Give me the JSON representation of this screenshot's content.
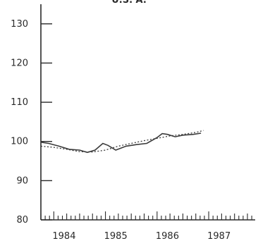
{
  "chart_data": {
    "type": "line",
    "title": "",
    "title_fragment": "U.S. A.",
    "xlabel": "",
    "ylabel": "",
    "x_tick_labels": [
      "1984",
      "1985",
      "1986",
      "1987"
    ],
    "y_ticks": [
      80,
      90,
      100,
      110,
      120,
      130
    ],
    "ylim": [
      80,
      135
    ],
    "xlim": [
      1983.75,
      1987.9
    ],
    "grid": false,
    "series": [
      {
        "style": "solid",
        "points": [
          {
            "x": 1983.75,
            "y": 99.8
          },
          {
            "x": 1983.9,
            "y": 99.5
          },
          {
            "x": 1984.1,
            "y": 98.8
          },
          {
            "x": 1984.3,
            "y": 98.0
          },
          {
            "x": 1984.5,
            "y": 97.8
          },
          {
            "x": 1984.65,
            "y": 97.2
          },
          {
            "x": 1984.8,
            "y": 97.8
          },
          {
            "x": 1984.95,
            "y": 99.5
          },
          {
            "x": 1985.05,
            "y": 99.0
          },
          {
            "x": 1985.2,
            "y": 97.8
          },
          {
            "x": 1985.4,
            "y": 98.8
          },
          {
            "x": 1985.6,
            "y": 99.2
          },
          {
            "x": 1985.8,
            "y": 99.5
          },
          {
            "x": 1986.0,
            "y": 101.0
          },
          {
            "x": 1986.1,
            "y": 102.0
          },
          {
            "x": 1986.2,
            "y": 101.8
          },
          {
            "x": 1986.35,
            "y": 101.2
          },
          {
            "x": 1986.5,
            "y": 101.6
          },
          {
            "x": 1986.7,
            "y": 101.8
          },
          {
            "x": 1986.85,
            "y": 102.1
          }
        ]
      },
      {
        "style": "dotted",
        "points": [
          {
            "x": 1983.75,
            "y": 98.8
          },
          {
            "x": 1984.0,
            "y": 98.5
          },
          {
            "x": 1984.25,
            "y": 98.0
          },
          {
            "x": 1984.5,
            "y": 97.4
          },
          {
            "x": 1984.75,
            "y": 97.3
          },
          {
            "x": 1985.0,
            "y": 97.8
          },
          {
            "x": 1985.25,
            "y": 98.8
          },
          {
            "x": 1985.5,
            "y": 99.5
          },
          {
            "x": 1985.75,
            "y": 100.2
          },
          {
            "x": 1986.0,
            "y": 100.8
          },
          {
            "x": 1986.25,
            "y": 101.4
          },
          {
            "x": 1986.5,
            "y": 101.8
          },
          {
            "x": 1986.75,
            "y": 102.3
          },
          {
            "x": 1986.9,
            "y": 102.8
          }
        ]
      }
    ],
    "colors": {
      "line": "#3a3a3a",
      "axis": "#2a2a2a",
      "text": "#2a2a2a"
    }
  }
}
